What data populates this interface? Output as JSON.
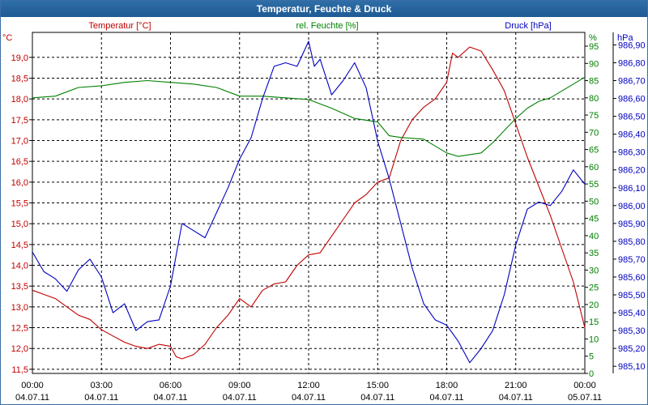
{
  "window": {
    "title": "Temperatur, Feuchte & Druck"
  },
  "legend": {
    "temp_label": "Temperatur [°C]",
    "hum_label": "rel. Feuchte [%]",
    "press_label": "Druck [hPa]"
  },
  "axes": {
    "left_unit": "°C",
    "right1_unit": "%",
    "right2_unit": "hPa",
    "left_ticks": [
      "19,0",
      "18,5",
      "18,0",
      "17,5",
      "17,0",
      "16,5",
      "16,0",
      "15,5",
      "15,0",
      "14,5",
      "14,0",
      "13,5",
      "13,0",
      "12,5",
      "12,0",
      "11,5"
    ],
    "right1_ticks": [
      "95",
      "90",
      "85",
      "80",
      "75",
      "70",
      "65",
      "60",
      "55",
      "50",
      "45",
      "40",
      "35",
      "30",
      "25",
      "20",
      "15",
      "10",
      "5",
      "0"
    ],
    "right2_ticks": [
      "986,90",
      "986,80",
      "986,70",
      "986,60",
      "986,50",
      "986,40",
      "986,30",
      "986,20",
      "986,10",
      "986,00",
      "985,90",
      "985,80",
      "985,70",
      "985,60",
      "985,50",
      "985,40",
      "985,30",
      "985,20",
      "985,10"
    ],
    "x_times": [
      "00:00",
      "03:00",
      "06:00",
      "09:00",
      "12:00",
      "15:00",
      "18:00",
      "21:00",
      "00:00"
    ],
    "x_dates": [
      "04.07.11",
      "04.07.11",
      "04.07.11",
      "04.07.11",
      "04.07.11",
      "04.07.11",
      "04.07.11",
      "04.07.11",
      "05.07.11"
    ]
  },
  "colors": {
    "temperature": "#c00000",
    "humidity": "#008000",
    "pressure": "#0000c0",
    "title_bar": "#2466a0",
    "grid": "#000000"
  },
  "chart_data": {
    "type": "line",
    "title": "Temperatur, Feuchte & Druck",
    "x_unit": "hours since 04.07.11 00:00",
    "grid": true,
    "series": [
      {
        "name": "Temperatur [°C]",
        "axis": "left",
        "ylim": [
          11.4,
          19.6
        ],
        "points": [
          [
            0,
            13.4
          ],
          [
            0.5,
            13.3
          ],
          [
            1,
            13.2
          ],
          [
            1.5,
            13.0
          ],
          [
            2,
            12.8
          ],
          [
            2.5,
            12.7
          ],
          [
            3,
            12.45
          ],
          [
            3.5,
            12.3
          ],
          [
            4,
            12.15
          ],
          [
            4.5,
            12.05
          ],
          [
            5,
            12.0
          ],
          [
            5.5,
            12.1
          ],
          [
            6,
            12.05
          ],
          [
            6.25,
            11.8
          ],
          [
            6.5,
            11.75
          ],
          [
            7,
            11.85
          ],
          [
            7.5,
            12.1
          ],
          [
            8,
            12.5
          ],
          [
            8.5,
            12.8
          ],
          [
            9,
            13.2
          ],
          [
            9.5,
            13.0
          ],
          [
            10,
            13.4
          ],
          [
            10.5,
            13.55
          ],
          [
            11,
            13.6
          ],
          [
            11.5,
            14.0
          ],
          [
            12,
            14.25
          ],
          [
            12.5,
            14.3
          ],
          [
            13,
            14.7
          ],
          [
            13.5,
            15.1
          ],
          [
            14,
            15.5
          ],
          [
            14.5,
            15.7
          ],
          [
            15,
            16.0
          ],
          [
            15.5,
            16.1
          ],
          [
            16,
            17.0
          ],
          [
            16.5,
            17.5
          ],
          [
            17,
            17.8
          ],
          [
            17.5,
            18.0
          ],
          [
            18,
            18.4
          ],
          [
            18.25,
            19.1
          ],
          [
            18.5,
            19.0
          ],
          [
            19,
            19.25
          ],
          [
            19.5,
            19.15
          ],
          [
            20,
            18.7
          ],
          [
            20.5,
            18.2
          ],
          [
            21,
            17.4
          ],
          [
            21.5,
            16.6
          ],
          [
            22,
            15.9
          ],
          [
            22.5,
            15.2
          ],
          [
            23,
            14.4
          ],
          [
            23.5,
            13.6
          ],
          [
            24,
            12.5
          ]
        ]
      },
      {
        "name": "rel. Feuchte [%]",
        "axis": "right1",
        "ylim": [
          0,
          99
        ],
        "points": [
          [
            0,
            80
          ],
          [
            1,
            80.5
          ],
          [
            2,
            83
          ],
          [
            3,
            83.5
          ],
          [
            4,
            84.5
          ],
          [
            5,
            85
          ],
          [
            6,
            84.5
          ],
          [
            7,
            84
          ],
          [
            8,
            83
          ],
          [
            9,
            80.5
          ],
          [
            10,
            80.5
          ],
          [
            11,
            80
          ],
          [
            12,
            79.5
          ],
          [
            13,
            77
          ],
          [
            14,
            74
          ],
          [
            15,
            73
          ],
          [
            15.5,
            69
          ],
          [
            16,
            68.5
          ],
          [
            17,
            68
          ],
          [
            18,
            64
          ],
          [
            18.5,
            63
          ],
          [
            19.5,
            64
          ],
          [
            20,
            67
          ],
          [
            21,
            74
          ],
          [
            21.5,
            77
          ],
          [
            22,
            79
          ],
          [
            22.5,
            80
          ],
          [
            23,
            82
          ],
          [
            23.5,
            84
          ],
          [
            24,
            86
          ]
        ]
      },
      {
        "name": "Druck [hPa]",
        "axis": "right2",
        "ylim": [
          985.06,
          986.97
        ],
        "points": [
          [
            0,
            985.74
          ],
          [
            0.5,
            985.63
          ],
          [
            1,
            985.59
          ],
          [
            1.5,
            985.52
          ],
          [
            2,
            985.64
          ],
          [
            2.5,
            985.7
          ],
          [
            3,
            985.6
          ],
          [
            3.5,
            985.4
          ],
          [
            4,
            985.45
          ],
          [
            4.5,
            985.3
          ],
          [
            5,
            985.35
          ],
          [
            5.5,
            985.36
          ],
          [
            6,
            985.55
          ],
          [
            6.5,
            985.9
          ],
          [
            7,
            985.86
          ],
          [
            7.5,
            985.82
          ],
          [
            8,
            985.96
          ],
          [
            8.5,
            986.1
          ],
          [
            9,
            986.26
          ],
          [
            9.5,
            986.38
          ],
          [
            10,
            986.6
          ],
          [
            10.5,
            986.78
          ],
          [
            11,
            986.8
          ],
          [
            11.5,
            986.78
          ],
          [
            12,
            986.92
          ],
          [
            12.25,
            986.78
          ],
          [
            12.5,
            986.82
          ],
          [
            13,
            986.62
          ],
          [
            13.5,
            986.7
          ],
          [
            14,
            986.8
          ],
          [
            14.5,
            986.66
          ],
          [
            15,
            986.36
          ],
          [
            15.5,
            986.15
          ],
          [
            16,
            985.9
          ],
          [
            16.5,
            985.65
          ],
          [
            17,
            985.45
          ],
          [
            17.5,
            985.36
          ],
          [
            18,
            985.33
          ],
          [
            18.5,
            985.24
          ],
          [
            19,
            985.12
          ],
          [
            19.5,
            985.2
          ],
          [
            20,
            985.3
          ],
          [
            20.5,
            985.5
          ],
          [
            21,
            985.78
          ],
          [
            21.5,
            985.98
          ],
          [
            22,
            986.02
          ],
          [
            22.5,
            986.0
          ],
          [
            23,
            986.08
          ],
          [
            23.5,
            986.2
          ],
          [
            24,
            986.12
          ]
        ]
      }
    ]
  }
}
